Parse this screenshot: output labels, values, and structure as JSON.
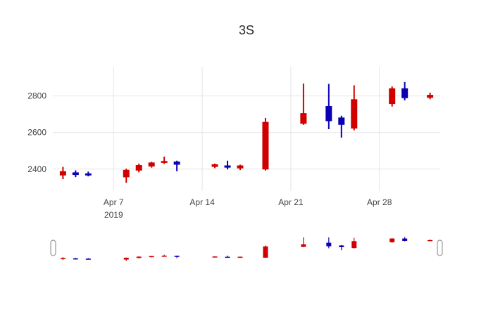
{
  "chart_data": {
    "type": "candlestick",
    "title": "3S",
    "increasing_color": "#d10000",
    "decreasing_color": "#0b00b4",
    "grid_color": "#e5e5e5",
    "x_axis": {
      "domain": [
        2.2,
        32.8
      ],
      "ticks": [
        {
          "pos": 7,
          "label": "Apr 7",
          "sublabel": "2019"
        },
        {
          "pos": 14,
          "label": "Apr 14",
          "sublabel": ""
        },
        {
          "pos": 21,
          "label": "Apr 21",
          "sublabel": ""
        },
        {
          "pos": 28,
          "label": "Apr 28",
          "sublabel": ""
        }
      ]
    },
    "y_axis": {
      "domain": [
        2280,
        2960
      ],
      "ticks": [
        2400,
        2600,
        2800
      ]
    },
    "candles": [
      {
        "date": "Apr 3",
        "pos": 3,
        "open": 2365,
        "high": 2412,
        "low": 2345,
        "close": 2388
      },
      {
        "date": "Apr 4",
        "pos": 4,
        "open": 2382,
        "high": 2393,
        "low": 2356,
        "close": 2368
      },
      {
        "date": "Apr 5",
        "pos": 5,
        "open": 2376,
        "high": 2386,
        "low": 2360,
        "close": 2365
      },
      {
        "date": "Apr 8",
        "pos": 8,
        "open": 2355,
        "high": 2402,
        "low": 2325,
        "close": 2396
      },
      {
        "date": "Apr 9",
        "pos": 9,
        "open": 2392,
        "high": 2430,
        "low": 2382,
        "close": 2422
      },
      {
        "date": "Apr 10",
        "pos": 10,
        "open": 2414,
        "high": 2440,
        "low": 2408,
        "close": 2436
      },
      {
        "date": "Apr 11",
        "pos": 11,
        "open": 2434,
        "high": 2468,
        "low": 2428,
        "close": 2444
      },
      {
        "date": "Apr 12",
        "pos": 12,
        "open": 2441,
        "high": 2446,
        "low": 2388,
        "close": 2424
      },
      {
        "date": "Apr 15",
        "pos": 15,
        "open": 2412,
        "high": 2430,
        "low": 2405,
        "close": 2426
      },
      {
        "date": "Apr 16",
        "pos": 16,
        "open": 2420,
        "high": 2446,
        "low": 2398,
        "close": 2408
      },
      {
        "date": "Apr 17",
        "pos": 17,
        "open": 2404,
        "high": 2424,
        "low": 2395,
        "close": 2420
      },
      {
        "date": "Apr 19",
        "pos": 19,
        "open": 2398,
        "high": 2680,
        "low": 2392,
        "close": 2658
      },
      {
        "date": "Apr 22",
        "pos": 22,
        "open": 2648,
        "high": 2868,
        "low": 2642,
        "close": 2706
      },
      {
        "date": "Apr 24",
        "pos": 24,
        "open": 2745,
        "high": 2866,
        "low": 2618,
        "close": 2662
      },
      {
        "date": "Apr 25",
        "pos": 25,
        "open": 2682,
        "high": 2692,
        "low": 2572,
        "close": 2642
      },
      {
        "date": "Apr 26",
        "pos": 26,
        "open": 2622,
        "high": 2858,
        "low": 2612,
        "close": 2782
      },
      {
        "date": "Apr 29",
        "pos": 29,
        "open": 2756,
        "high": 2852,
        "low": 2742,
        "close": 2842
      },
      {
        "date": "Apr 30",
        "pos": 30,
        "open": 2842,
        "high": 2876,
        "low": 2776,
        "close": 2788
      },
      {
        "date": "May 2",
        "pos": 32,
        "open": 2790,
        "high": 2818,
        "low": 2782,
        "close": 2806
      }
    ],
    "rangeslider": {
      "y_domain": [
        2300,
        2950
      ]
    }
  }
}
